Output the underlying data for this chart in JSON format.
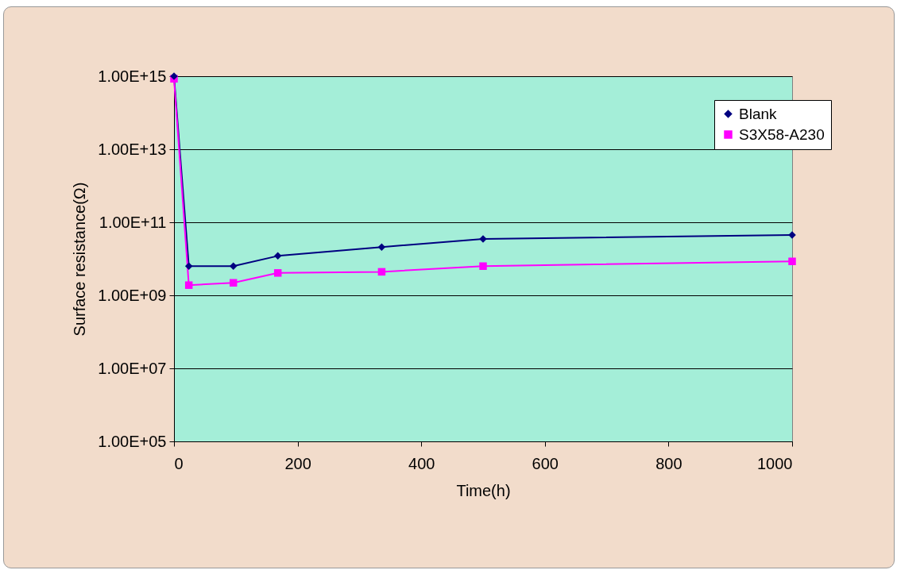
{
  "chart_data": {
    "type": "line",
    "xlabel": "Time(h)",
    "ylabel": "Surface resistance(Ω)",
    "log": "y",
    "xlim": [
      0,
      1000
    ],
    "xticks": [
      0,
      200,
      400,
      600,
      800,
      1000
    ],
    "ylim": [
      100000.0,
      1000000000000000.0
    ],
    "yticks": [
      {
        "value": 100000.0,
        "label": "1.00E+05"
      },
      {
        "value": 10000000.0,
        "label": "1.00E+07"
      },
      {
        "value": 1000000000.0,
        "label": "1.00E+09"
      },
      {
        "value": 100000000000.0,
        "label": "1.00E+11"
      },
      {
        "value": 10000000000000.0,
        "label": "1.00E+13"
      },
      {
        "value": 1000000000000000.0,
        "label": "1.00E+15"
      }
    ],
    "grid": "y",
    "legend": "top right",
    "line_style": "solid",
    "x": [
      0,
      24,
      96,
      168,
      336,
      500,
      1000
    ],
    "series": [
      {
        "name": "Blank",
        "color": "#000080",
        "marker": "diamond",
        "values": [
          1000000000000000.0,
          6300000000.0,
          6300000000.0,
          12000000000.0,
          21000000000.0,
          35000000000.0,
          45000000000.0
        ]
      },
      {
        "name": "S3X58-A230",
        "color": "#ff00ff",
        "marker": "square",
        "values": [
          850000000000000.0,
          1900000000.0,
          2200000000.0,
          4100000000.0,
          4400000000.0,
          6300000000.0,
          8500000000.0
        ]
      }
    ]
  }
}
